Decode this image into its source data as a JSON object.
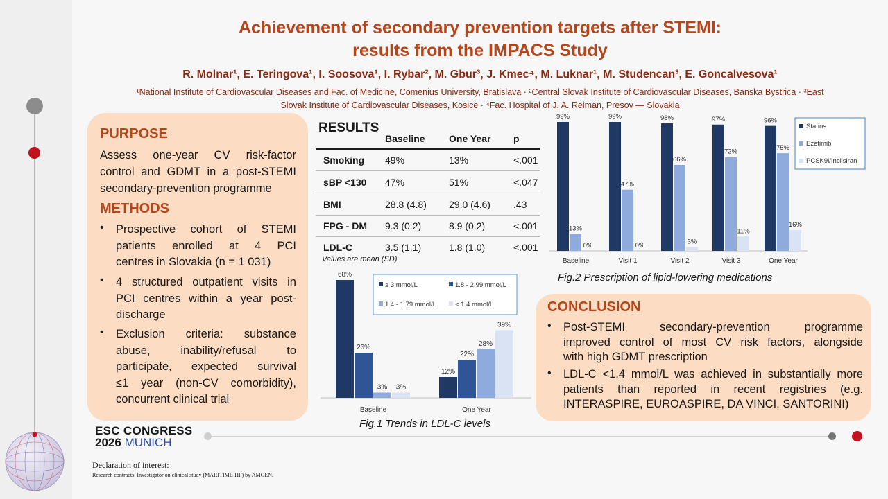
{
  "header": {
    "title_line1": "Achievement of secondary prevention targets after STEMI:",
    "title_line2": "results from the IMPACS Study",
    "authors": "R. Molnar¹, E. Teringova¹, I. Soosova¹, I. Rybar², M. Gbur³, J. Kmec⁴, M. Luknar¹, M. Studencan³, E. Goncalvesova¹",
    "affiliations_line1": "¹National Institute of Cardiovascular Diseases and Fac. of Medicine, Comenius University, Bratislava · ²Central Slovak Institute of Cardiovascular Diseases, Banska Bystrica · ³East",
    "affiliations_line2": "Slovak Institute of Cardiovascular Diseases, Kosice · ⁴Fac. Hospital of J. A. Reiman, Presov — Slovakia"
  },
  "purpose": {
    "heading": "PURPOSE",
    "lines": [
      "Assess one-year CV risk-factor",
      "control and GDMT in a post-STEMI",
      "secondary-prevention programme"
    ]
  },
  "methods": {
    "heading": "METHODS",
    "bullets": [
      [
        "Prospective cohort of STEMI",
        "patients enrolled at 4 PCI",
        "centres in Slovakia (n = 1 031)"
      ],
      [
        "4 structured outpatient visits in",
        "PCI centres within a year post-",
        "discharge"
      ],
      [
        "Exclusion criteria: substance",
        "abuse, inability/refusal to",
        "participate, expected survival",
        "≤1 year (non-CV comorbidity),",
        "concurrent clinical trial"
      ]
    ]
  },
  "results": {
    "heading": "RESULTS",
    "columns": [
      "Baseline",
      "One Year",
      "p"
    ],
    "rows": [
      {
        "label": "Smoking",
        "baseline": "49%",
        "one_year": "13%",
        "p": "<.001"
      },
      {
        "label": "sBP <130",
        "baseline": "47%",
        "one_year": "51%",
        "p": "<.047"
      },
      {
        "label": "BMI",
        "baseline": "28.8 (4.8)",
        "one_year": "29.0 (4.6)",
        "p": ".43"
      },
      {
        "label": "FPG - DM",
        "baseline": "9.3 (0.2)",
        "one_year": "8.9 (0.2)",
        "p": "<.001"
      },
      {
        "label": "LDL-C",
        "baseline": "3.5 (1.1)",
        "one_year": "1.8 (1.0)",
        "p": "<.001"
      }
    ],
    "note": "Values are mean (SD)"
  },
  "fig1": {
    "caption": "Fig.1 Trends in LDL-C levels",
    "colors": [
      "#1f3864",
      "#2f5597",
      "#8faadc",
      "#dae3f3"
    ]
  },
  "fig2": {
    "caption": "Fig.2 Prescription of lipid-lowering medications",
    "colors": [
      "#1f3864",
      "#8faadc",
      "#dae3f3"
    ]
  },
  "conclusion": {
    "heading": "CONCLUSION",
    "bullets": [
      [
        "Post-STEMI secondary-prevention programme",
        "improved control of most CV risk factors, alongside",
        "with high GDMT prescription"
      ],
      [
        "LDL-C <1.4 mmol/L was achieved in substantially more",
        "patients than reported in recent registries (e.g.",
        "INTERASPIRE, EUROASPIRE, DA VINCI, SANTORINI)"
      ]
    ]
  },
  "footer": {
    "congress_line1": "ESC CONGRESS",
    "congress_year": "2026",
    "congress_city": "MUNICH",
    "declaration_title": "Declaration of interest:",
    "declaration_text": "Research contracts: Investigator on clinical study (MARITIME-HF) by AMGEN."
  },
  "chart_data": [
    {
      "type": "bar",
      "categories": [
        "Baseline",
        "One Year"
      ],
      "series": [
        {
          "name": "≥ 3 mmol/L",
          "values": [
            68,
            12
          ]
        },
        {
          "name": "1.8 - 2.99 mmol/L",
          "values": [
            26,
            22
          ]
        },
        {
          "name": "1.4 - 1.79 mmol/L",
          "values": [
            3,
            28
          ]
        },
        {
          "name": "< 1.4 mmol/L",
          "values": [
            3,
            39
          ]
        }
      ],
      "title": "Fig.1 Trends in LDL-C levels",
      "unit": "%",
      "ylim": [
        0,
        68
      ],
      "grid": false,
      "legend": "top-right"
    },
    {
      "type": "bar",
      "categories": [
        "Baseline",
        "Visit 1",
        "Visit 2",
        "Visit 3",
        "One Year"
      ],
      "series": [
        {
          "name": "Statins",
          "values": [
            99,
            99,
            98,
            97,
            96
          ]
        },
        {
          "name": "Ezetimib",
          "values": [
            13,
            47,
            66,
            72,
            75
          ]
        },
        {
          "name": "PCSK9i/Inclisiran",
          "values": [
            0,
            0,
            3,
            11,
            16
          ]
        }
      ],
      "title": "Fig.2 Prescription of lipid-lowering medications",
      "unit": "%",
      "ylim": [
        0,
        99
      ],
      "grid": false,
      "legend": "right"
    }
  ]
}
